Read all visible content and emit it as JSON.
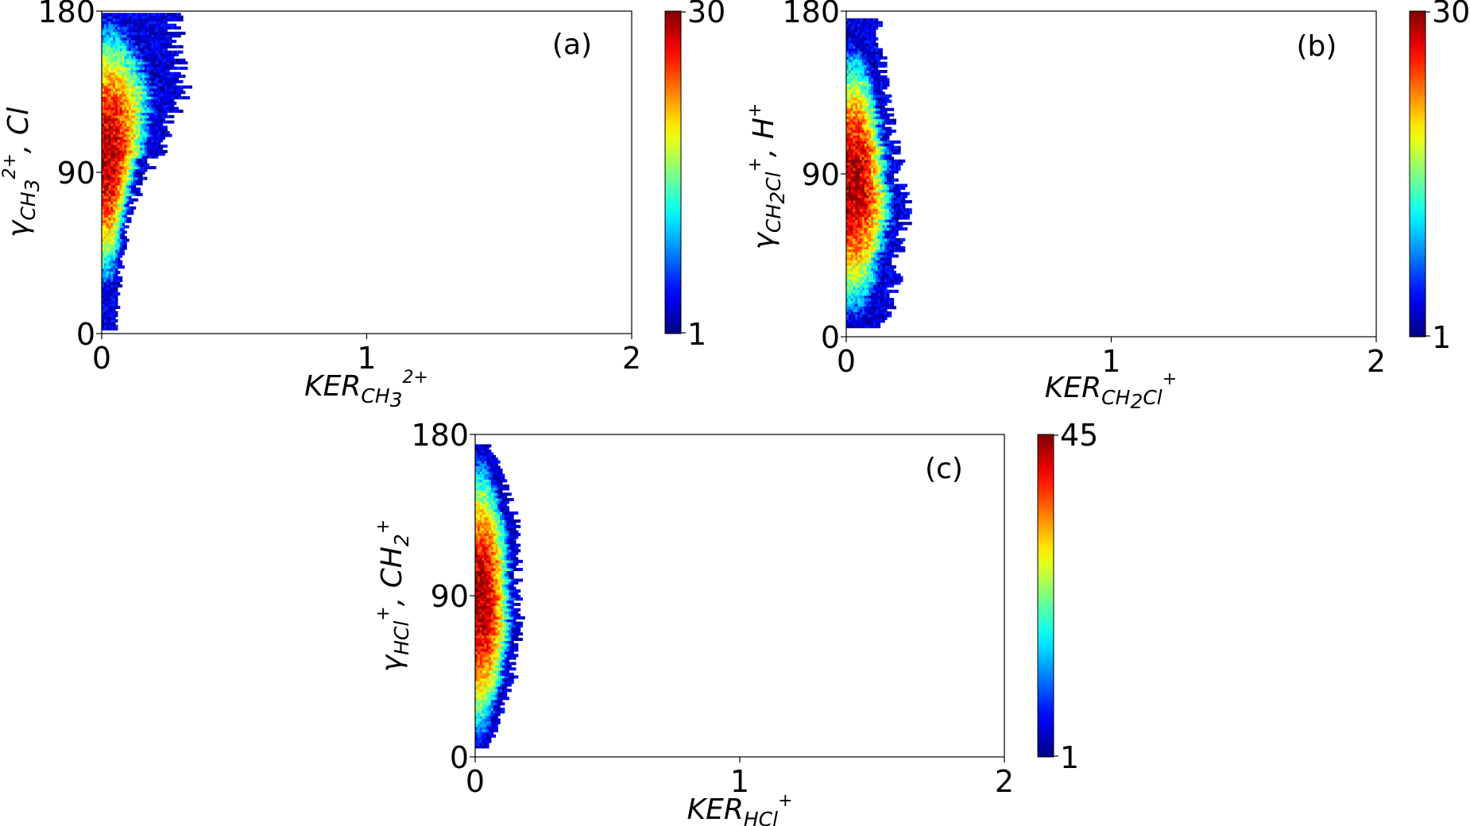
{
  "chart_data": [
    {
      "type": "heatmap",
      "panel_label": "(a)",
      "xlabel": {
        "base": "KER",
        "sub": "CH",
        "sub_num": "3",
        "sup": "2+"
      },
      "ylabel": {
        "base": "γ",
        "sub": "CH",
        "sub_num": "3",
        "sup": "2+",
        "tail": ", Cl"
      },
      "xlim": [
        0,
        2
      ],
      "ylim": [
        0,
        180
      ],
      "xticks": [
        "0",
        "1",
        "2"
      ],
      "yticks": [
        "0",
        "90",
        "180"
      ],
      "colorbar": {
        "min_label": "1",
        "max_label": "30",
        "min": 1,
        "max": 30,
        "colormap": "jet"
      },
      "distribution": {
        "x_peak": 0.02,
        "y_range": [
          2,
          178
        ],
        "y_peak": 100,
        "peak_count": 30,
        "edge_profile": [
          [
            2,
            0.05
          ],
          [
            40,
            0.07
          ],
          [
            70,
            0.11
          ],
          [
            90,
            0.17
          ],
          [
            100,
            0.21
          ],
          [
            115,
            0.24
          ],
          [
            130,
            0.29
          ],
          [
            150,
            0.29
          ],
          [
            165,
            0.27
          ],
          [
            178,
            0.27
          ]
        ]
      }
    },
    {
      "type": "heatmap",
      "panel_label": "(b)",
      "xlabel": {
        "base": "KER",
        "sub": "CH",
        "sub_num": "2",
        "sub_tail": "Cl",
        "sup": "+"
      },
      "ylabel": {
        "base": "γ",
        "sub": "CH",
        "sub_num": "2",
        "sub_tail": "Cl",
        "sup": "+",
        "tail": ", H",
        "tail_sup": "+"
      },
      "xlim": [
        0,
        2
      ],
      "ylim": [
        0,
        180
      ],
      "xticks": [
        "0",
        "1",
        "2"
      ],
      "yticks": [
        "0",
        "90",
        "180"
      ],
      "colorbar": {
        "min_label": "1",
        "max_label": "30",
        "min": 1,
        "max": 30,
        "colormap": "jet"
      },
      "distribution": {
        "x_peak": 0.03,
        "y_range": [
          5,
          176
        ],
        "y_peak": 85,
        "peak_count": 30,
        "edge_profile": [
          [
            5,
            0.14
          ],
          [
            30,
            0.18
          ],
          [
            60,
            0.21
          ],
          [
            70,
            0.22
          ],
          [
            90,
            0.2
          ],
          [
            120,
            0.16
          ],
          [
            150,
            0.13
          ],
          [
            176,
            0.12
          ]
        ]
      }
    },
    {
      "type": "heatmap",
      "panel_label": "(c)",
      "xlabel": {
        "base": "KER",
        "sub": "HCl",
        "sup": "+"
      },
      "ylabel": {
        "base": "γ",
        "sub": "HCl",
        "sup": "+",
        "tail": ", CH",
        "tail_sub": "2",
        "tail_sup": "+"
      },
      "xlim": [
        0,
        2
      ],
      "ylim": [
        0,
        180
      ],
      "xticks": [
        "0",
        "1",
        "2"
      ],
      "yticks": [
        "0",
        "90",
        "180"
      ],
      "colorbar": {
        "min_label": "1",
        "max_label": "45",
        "min": 1,
        "max": 45,
        "colormap": "jet"
      },
      "distribution": {
        "x_peak": 0.02,
        "y_range": [
          5,
          174
        ],
        "y_peak": 88,
        "peak_count": 45,
        "edge_profile": [
          [
            5,
            0.05
          ],
          [
            25,
            0.1
          ],
          [
            45,
            0.14
          ],
          [
            70,
            0.16
          ],
          [
            100,
            0.16
          ],
          [
            130,
            0.15
          ],
          [
            155,
            0.1
          ],
          [
            174,
            0.05
          ]
        ]
      }
    }
  ]
}
